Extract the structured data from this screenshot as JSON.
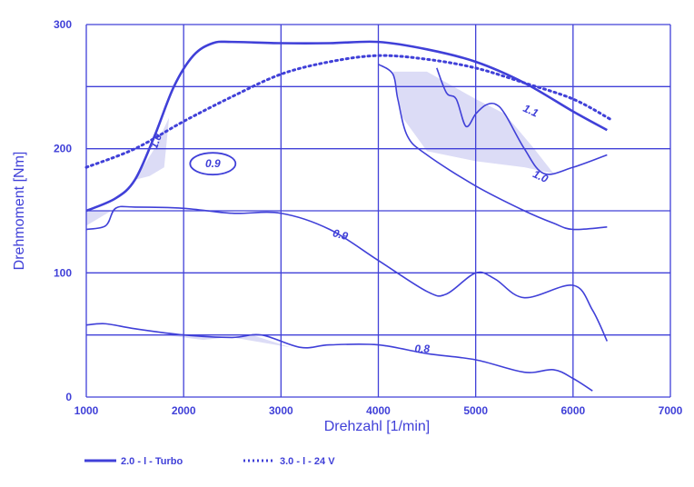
{
  "chart_data": {
    "type": "line",
    "xlabel": "Drehzahl [1/min]",
    "ylabel": "Drehmoment [Nm]",
    "xlim": [
      1000,
      7000
    ],
    "ylim": [
      0,
      300
    ],
    "xticks": [
      "1000",
      "2000",
      "3000",
      "4000",
      "5000",
      "6000",
      "7000"
    ],
    "yticks": [
      "0",
      "100",
      "200",
      "300"
    ],
    "grid": true,
    "legend_position": "bottom-left",
    "colors": {
      "line": "#4040d8",
      "fill": "#dcdcf6"
    },
    "series": [
      {
        "name": "2.0 - l - Turbo",
        "style": "solid",
        "x": [
          1000,
          1300,
          1500,
          1700,
          1900,
          2100,
          2300,
          2500,
          3000,
          3500,
          4000,
          4500,
          5000,
          5500,
          6000,
          6350
        ],
        "y": [
          150,
          160,
          175,
          210,
          250,
          275,
          285,
          286,
          285,
          285,
          286,
          280,
          270,
          253,
          230,
          215
        ]
      },
      {
        "name": "3.0 - l - 24 V",
        "style": "dotted",
        "x": [
          1000,
          1500,
          2000,
          2500,
          3000,
          3500,
          4000,
          4500,
          5000,
          5500,
          6000,
          6400
        ],
        "y": [
          185,
          200,
          222,
          242,
          260,
          270,
          275,
          272,
          265,
          253,
          240,
          223
        ]
      }
    ],
    "contours": [
      {
        "label": "1.1",
        "x": [
          4600,
          4700,
          4800,
          4900,
          5000,
          5100,
          5200,
          5300,
          5500,
          5700,
          6000,
          6350
        ],
        "y": [
          265,
          245,
          240,
          218,
          228,
          235,
          236,
          228,
          200,
          180,
          185,
          195
        ]
      },
      {
        "label": "1.0",
        "x": [
          4000,
          4150,
          4200,
          4300,
          4500,
          5000,
          5500,
          5800,
          6000,
          6350
        ],
        "y": [
          268,
          260,
          240,
          210,
          195,
          170,
          150,
          140,
          135,
          137
        ]
      },
      {
        "label": "0.9",
        "x": [
          1000,
          1200,
          1300,
          1500,
          2000,
          2500,
          3000,
          3500,
          4000,
          4500,
          4700,
          5000,
          5200,
          5500,
          6000,
          6200,
          6350
        ],
        "y": [
          135,
          138,
          152,
          153,
          152,
          148,
          148,
          135,
          110,
          85,
          83,
          100,
          95,
          80,
          90,
          70,
          45
        ]
      },
      {
        "label": "0.8",
        "x": [
          1000,
          1200,
          1500,
          2000,
          2500,
          2800,
          3200,
          3500,
          4000,
          4500,
          5000,
          5500,
          5800,
          6000,
          6200
        ],
        "y": [
          58,
          59,
          55,
          50,
          48,
          50,
          40,
          42,
          42,
          35,
          30,
          20,
          22,
          15,
          5
        ]
      }
    ],
    "annotations": [
      {
        "text": "1.0",
        "x": 1750,
        "y": 205
      },
      {
        "text": "0.9",
        "x": 2300,
        "y": 185
      },
      {
        "text": "1.1",
        "x": 5550,
        "y": 228
      },
      {
        "text": "1.0",
        "x": 5650,
        "y": 175
      },
      {
        "text": "0.9",
        "x": 3600,
        "y": 128
      },
      {
        "text": "0.8",
        "x": 4450,
        "y": 36
      }
    ]
  }
}
